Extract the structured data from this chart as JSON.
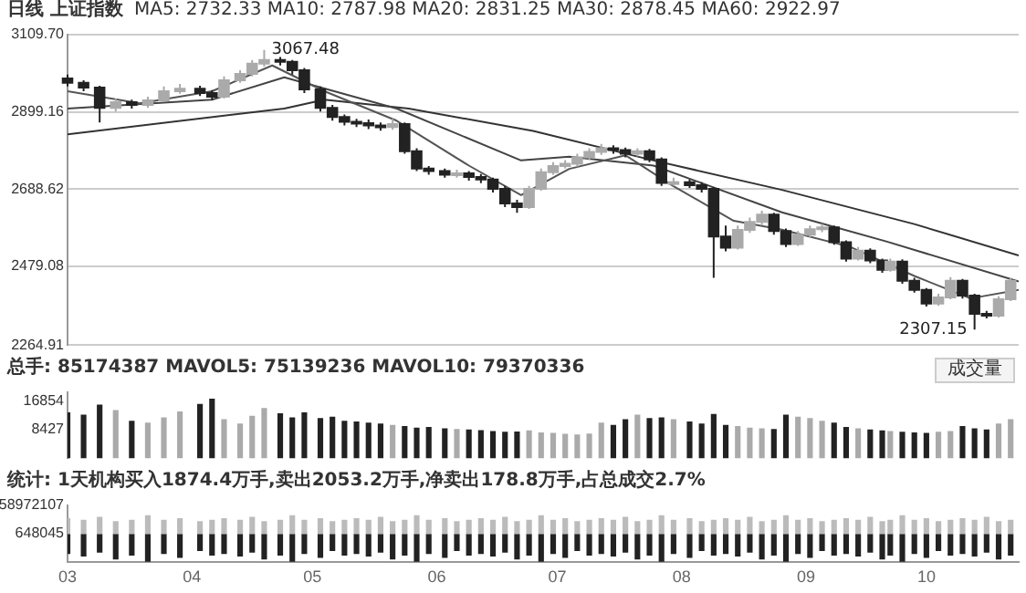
{
  "chart_data": [
    {
      "type": "candlestick",
      "title": "日线 上证指数",
      "subtitle": "MA5: 2732.33 MA10: 2787.98 MA20: 2831.25 MA30: 2878.45 MA60: 2922.97",
      "x": [
        "--03-01",
        "--03-05",
        "--03-09",
        "--03-13",
        "--03-17",
        "--03-21",
        "--03-25",
        "--03-29",
        "--04-03",
        "--04-06",
        "--04-09",
        "--04-13",
        "--04-16",
        "--04-19",
        "--04-23",
        "--04-26",
        "--04-29",
        "--05-03",
        "--05-06",
        "--05-09",
        "--05-12",
        "--05-15",
        "--05-18",
        "--05-21",
        "--05-24",
        "--05-27",
        "--05-30",
        "--06-03",
        "--06-06",
        "--06-09",
        "--06-12",
        "--06-15",
        "--06-18",
        "--06-21",
        "--06-24",
        "--06-27",
        "--06-30",
        "--07-03",
        "--07-06",
        "--07-09",
        "--07-12",
        "--07-15",
        "--07-18",
        "--07-21",
        "--07-24",
        "--07-27",
        "--07-30",
        "--08-03",
        "--08-06",
        "--08-09",
        "--08-12",
        "--08-15",
        "--08-18",
        "--08-21",
        "--08-24",
        "--08-27",
        "--08-30",
        "--09-02",
        "--09-05",
        "--09-08",
        "--09-11",
        "--09-14",
        "--09-17",
        "--09-20",
        "--09-22",
        "--09-25",
        "--09-28",
        "--10-01",
        "--10-04",
        "--10-07",
        "--10-10",
        "--10-13",
        "--10-16",
        "--10-19",
        "--10-22"
      ],
      "ohlc": [
        [
          2990,
          3000,
          2968,
          2978
        ],
        [
          2978,
          2985,
          2955,
          2965
        ],
        [
          2965,
          2970,
          2870,
          2910
        ],
        [
          2910,
          2935,
          2900,
          2925
        ],
        [
          2925,
          2932,
          2908,
          2918
        ],
        [
          2918,
          2940,
          2910,
          2930
        ],
        [
          2930,
          2968,
          2925,
          2955
        ],
        [
          2955,
          2975,
          2948,
          2962
        ],
        [
          2962,
          2970,
          2942,
          2950
        ],
        [
          2950,
          2958,
          2930,
          2940
        ],
        [
          2940,
          2995,
          2935,
          2985
        ],
        [
          2985,
          3012,
          2978,
          3002
        ],
        [
          3002,
          3040,
          2995,
          3030
        ],
        [
          3030,
          3067.48,
          3022,
          3040
        ],
        [
          3040,
          3048,
          3025,
          3035
        ],
        [
          3035,
          3040,
          3000,
          3012
        ],
        [
          3012,
          3018,
          2950,
          2960
        ],
        [
          2960,
          2968,
          2900,
          2910
        ],
        [
          2910,
          2918,
          2875,
          2885
        ],
        [
          2885,
          2892,
          2862,
          2872
        ],
        [
          2872,
          2880,
          2858,
          2868
        ],
        [
          2868,
          2878,
          2852,
          2862
        ],
        [
          2862,
          2870,
          2848,
          2858
        ],
        [
          2858,
          2880,
          2850,
          2866
        ],
        [
          2866,
          2870,
          2785,
          2792
        ],
        [
          2792,
          2800,
          2738,
          2745
        ],
        [
          2745,
          2752,
          2728,
          2738
        ],
        [
          2738,
          2745,
          2720,
          2728
        ],
        [
          2728,
          2742,
          2720,
          2732
        ],
        [
          2732,
          2738,
          2712,
          2722
        ],
        [
          2722,
          2730,
          2705,
          2715
        ],
        [
          2715,
          2720,
          2680,
          2690
        ],
        [
          2690,
          2698,
          2640,
          2650
        ],
        [
          2650,
          2660,
          2625,
          2640
        ],
        [
          2640,
          2698,
          2635,
          2690
        ],
        [
          2690,
          2745,
          2685,
          2735
        ],
        [
          2735,
          2762,
          2728,
          2752
        ],
        [
          2752,
          2768,
          2745,
          2758
        ],
        [
          2758,
          2785,
          2750,
          2775
        ],
        [
          2775,
          2800,
          2768,
          2790
        ],
        [
          2790,
          2812,
          2782,
          2800
        ],
        [
          2800,
          2808,
          2785,
          2795
        ],
        [
          2795,
          2802,
          2775,
          2785
        ],
        [
          2785,
          2800,
          2778,
          2792
        ],
        [
          2792,
          2798,
          2762,
          2770
        ],
        [
          2770,
          2775,
          2698,
          2706
        ],
        [
          2706,
          2720,
          2698,
          2708
        ],
        [
          2708,
          2715,
          2692,
          2700
        ],
        [
          2700,
          2708,
          2680,
          2690
        ],
        [
          2690,
          2695,
          2448,
          2560
        ],
        [
          2560,
          2590,
          2520,
          2530
        ],
        [
          2530,
          2590,
          2525,
          2578
        ],
        [
          2578,
          2612,
          2570,
          2600
        ],
        [
          2600,
          2630,
          2590,
          2620
        ],
        [
          2620,
          2625,
          2565,
          2575
        ],
        [
          2575,
          2582,
          2532,
          2540
        ],
        [
          2540,
          2575,
          2535,
          2565
        ],
        [
          2565,
          2590,
          2558,
          2580
        ],
        [
          2580,
          2595,
          2572,
          2585
        ],
        [
          2585,
          2590,
          2538,
          2545
        ],
        [
          2545,
          2550,
          2492,
          2500
        ],
        [
          2500,
          2532,
          2495,
          2522
        ],
        [
          2522,
          2528,
          2488,
          2495
        ],
        [
          2495,
          2500,
          2462,
          2470
        ],
        [
          2470,
          2500,
          2465,
          2492
        ],
        [
          2492,
          2498,
          2432,
          2440
        ],
        [
          2440,
          2448,
          2408,
          2415
        ],
        [
          2415,
          2420,
          2370,
          2378
        ],
        [
          2378,
          2405,
          2372,
          2395
        ],
        [
          2395,
          2450,
          2390,
          2440
        ],
        [
          2440,
          2445,
          2392,
          2400
        ],
        [
          2400,
          2405,
          2307.15,
          2350
        ],
        [
          2350,
          2358,
          2338,
          2345
        ],
        [
          2345,
          2398,
          2340,
          2390
        ],
        [
          2390,
          2448,
          2385,
          2440
        ]
      ],
      "colors": [
        "#222222",
        "#222222",
        "#222222",
        "#aaaaaa",
        "#222222",
        "#aaaaaa",
        "#aaaaaa",
        "#aaaaaa",
        "#222222",
        "#222222",
        "#aaaaaa",
        "#aaaaaa",
        "#aaaaaa",
        "#aaaaaa",
        "#222222",
        "#222222",
        "#222222",
        "#222222",
        "#222222",
        "#222222",
        "#222222",
        "#222222",
        "#222222",
        "#aaaaaa",
        "#222222",
        "#222222",
        "#222222",
        "#222222",
        "#aaaaaa",
        "#222222",
        "#222222",
        "#222222",
        "#222222",
        "#222222",
        "#aaaaaa",
        "#aaaaaa",
        "#aaaaaa",
        "#aaaaaa",
        "#aaaaaa",
        "#aaaaaa",
        "#aaaaaa",
        "#222222",
        "#222222",
        "#aaaaaa",
        "#222222",
        "#222222",
        "#aaaaaa",
        "#222222",
        "#222222",
        "#222222",
        "#222222",
        "#aaaaaa",
        "#aaaaaa",
        "#aaaaaa",
        "#222222",
        "#222222",
        "#aaaaaa",
        "#aaaaaa",
        "#aaaaaa",
        "#222222",
        "#222222",
        "#aaaaaa",
        "#222222",
        "#222222",
        "#aaaaaa",
        "#222222",
        "#222222",
        "#222222",
        "#aaaaaa",
        "#aaaaaa",
        "#222222",
        "#222222",
        "#222222",
        "#aaaaaa",
        "#aaaaaa"
      ],
      "series": [
        {
          "type": "line",
          "color": "#555555",
          "x": [
            "--03-01",
            "--03-19",
            "--04-06",
            "--04-21",
            "--05-04",
            "--05-22",
            "--06-09",
            "--06-22",
            "--07-04",
            "--07-18",
            "--07-30",
            "--08-14",
            "--08-26",
            "--09-12",
            "--09-28",
            "--10-12",
            "--10-24"
          ],
          "values": [
            2955,
            2922,
            2955,
            3025,
            2955,
            2875,
            2753,
            2673,
            2744,
            2781,
            2697,
            2603,
            2579,
            2532,
            2453,
            2392,
            2415
          ]
        },
        {
          "type": "line",
          "color": "#444444",
          "x": [
            "--03-01",
            "--04-06",
            "--04-24",
            "--05-22",
            "--06-22",
            "--07-04",
            "--07-25",
            "--08-26",
            "--09-21",
            "--10-24"
          ],
          "values": [
            2908,
            2932,
            2993,
            2908,
            2767,
            2777,
            2753,
            2626,
            2547,
            2438
          ]
        },
        {
          "type": "line",
          "color": "#333333",
          "x": [
            "--03-01",
            "--04-24",
            "--05-04",
            "--05-25",
            "--06-25",
            "--07-25",
            "--08-26",
            "--09-28",
            "--10-24"
          ],
          "values": [
            2838,
            2908,
            2932,
            2908,
            2847,
            2767,
            2687,
            2594,
            2509
          ]
        }
      ],
      "annotations": [
        {
          "text": "3067.48",
          "x": "--04-19",
          "y": 3067.48
        },
        {
          "text": "2307.15",
          "x": "--10-13",
          "y": 2307.15
        }
      ],
      "xlim": [
        "--03-01",
        "--10-24"
      ],
      "xticks": [
        {
          "value": "--03-01",
          "label": "03"
        },
        {
          "value": "--04-01",
          "label": "04"
        },
        {
          "value": "--05-01",
          "label": "05"
        },
        {
          "value": "--06-01",
          "label": "06"
        },
        {
          "value": "--07-01",
          "label": "07"
        },
        {
          "value": "--08-01",
          "label": "08"
        },
        {
          "value": "--09-01",
          "label": "09"
        },
        {
          "value": "--10-01",
          "label": "10"
        }
      ],
      "ylim": [
        2264.91,
        3109.7
      ],
      "yticks": [
        {
          "value": 2264.91,
          "label": "2264.91"
        },
        {
          "value": 2479.08,
          "label": "2479.08"
        },
        {
          "value": 2688.62,
          "label": "2688.62"
        },
        {
          "value": 2899.16,
          "label": "2899.16"
        },
        {
          "value": 3109.7,
          "label": "3109.70"
        }
      ],
      "grid": "y",
      "tick_labels": "y"
    },
    {
      "type": "bar",
      "title": "总手: 85174387 MAVOL5: 75139236 MAVOL10: 79370336",
      "annotations": [
        "成交量"
      ],
      "x": [
        "--03-01",
        "--03-05",
        "--03-09",
        "--03-13",
        "--03-17",
        "--03-21",
        "--03-25",
        "--03-29",
        "--04-03",
        "--04-06",
        "--04-09",
        "--04-13",
        "--04-16",
        "--04-19",
        "--04-23",
        "--04-26",
        "--04-29",
        "--05-03",
        "--05-06",
        "--05-09",
        "--05-12",
        "--05-15",
        "--05-18",
        "--05-21",
        "--05-24",
        "--05-27",
        "--05-30",
        "--06-03",
        "--06-06",
        "--06-09",
        "--06-12",
        "--06-15",
        "--06-18",
        "--06-21",
        "--06-24",
        "--06-27",
        "--06-30",
        "--07-03",
        "--07-06",
        "--07-09",
        "--07-12",
        "--07-15",
        "--07-18",
        "--07-21",
        "--07-24",
        "--07-27",
        "--07-30",
        "--08-03",
        "--08-06",
        "--08-09",
        "--08-12",
        "--08-15",
        "--08-18",
        "--08-21",
        "--08-24",
        "--08-27",
        "--08-30",
        "--09-02",
        "--09-05",
        "--09-08",
        "--09-11",
        "--09-14",
        "--09-17",
        "--09-20",
        "--09-22",
        "--09-25",
        "--09-28",
        "--10-01",
        "--10-04",
        "--10-07",
        "--10-10",
        "--10-13",
        "--10-16",
        "--10-19",
        "--10-22"
      ],
      "values": [
        13500,
        12800,
        15800,
        14200,
        11000,
        10500,
        12000,
        13800,
        16000,
        17500,
        11500,
        10200,
        12500,
        14800,
        13200,
        12000,
        13500,
        11800,
        12200,
        11000,
        10800,
        10500,
        10200,
        9800,
        9500,
        9000,
        9200,
        8800,
        8600,
        8500,
        8300,
        8000,
        7800,
        7900,
        8200,
        7600,
        7500,
        7200,
        7000,
        7300,
        10500,
        9800,
        11500,
        12800,
        11800,
        12000,
        11500,
        10800,
        10200,
        13000,
        9800,
        9500,
        9000,
        8800,
        8600,
        12800,
        12200,
        11800,
        11000,
        10500,
        9200,
        8800,
        8500,
        8200,
        8000,
        7800,
        7600,
        7500,
        7800,
        8000,
        9500,
        8800,
        8500,
        10200,
        11500
      ],
      "colors": [
        "#222222",
        "#222222",
        "#222222",
        "#aaaaaa",
        "#222222",
        "#aaaaaa",
        "#aaaaaa",
        "#aaaaaa",
        "#222222",
        "#222222",
        "#aaaaaa",
        "#aaaaaa",
        "#aaaaaa",
        "#aaaaaa",
        "#222222",
        "#222222",
        "#222222",
        "#222222",
        "#222222",
        "#222222",
        "#222222",
        "#222222",
        "#222222",
        "#aaaaaa",
        "#222222",
        "#222222",
        "#222222",
        "#222222",
        "#aaaaaa",
        "#222222",
        "#222222",
        "#222222",
        "#222222",
        "#222222",
        "#aaaaaa",
        "#aaaaaa",
        "#aaaaaa",
        "#aaaaaa",
        "#aaaaaa",
        "#aaaaaa",
        "#aaaaaa",
        "#222222",
        "#222222",
        "#aaaaaa",
        "#222222",
        "#222222",
        "#aaaaaa",
        "#222222",
        "#222222",
        "#222222",
        "#222222",
        "#aaaaaa",
        "#aaaaaa",
        "#aaaaaa",
        "#222222",
        "#222222",
        "#aaaaaa",
        "#aaaaaa",
        "#aaaaaa",
        "#222222",
        "#222222",
        "#aaaaaa",
        "#222222",
        "#222222",
        "#aaaaaa",
        "#222222",
        "#222222",
        "#222222",
        "#aaaaaa",
        "#aaaaaa",
        "#222222",
        "#222222",
        "#222222",
        "#aaaaaa",
        "#aaaaaa"
      ],
      "xlim": [
        "--03-01",
        "--10-24"
      ],
      "xticks": [
        {
          "value": "--03-01",
          "label": "03"
        },
        {
          "value": "--04-01",
          "label": "04"
        },
        {
          "value": "--05-01",
          "label": "05"
        },
        {
          "value": "--06-01",
          "label": "06"
        },
        {
          "value": "--07-01",
          "label": "07"
        },
        {
          "value": "--08-01",
          "label": "08"
        },
        {
          "value": "--09-01",
          "label": "09"
        },
        {
          "value": "--10-01",
          "label": "10"
        }
      ],
      "ylim": [
        0,
        19500
      ],
      "yticks": [
        8427,
        16854
      ],
      "tick_labels": "y"
    },
    {
      "type": "bar",
      "title": "统计: 1天机构买入1874.4万手,卖出2053.2万手,净卖出178.8万手,占总成交2.7%",
      "stacked": true,
      "x": [
        "--03-01",
        "--03-05",
        "--03-09",
        "--03-13",
        "--03-17",
        "--03-21",
        "--03-25",
        "--03-29",
        "--04-03",
        "--04-06",
        "--04-09",
        "--04-13",
        "--04-16",
        "--04-19",
        "--04-23",
        "--04-26",
        "--04-29",
        "--05-03",
        "--05-06",
        "--05-09",
        "--05-12",
        "--05-15",
        "--05-18",
        "--05-21",
        "--05-24",
        "--05-27",
        "--05-30",
        "--06-03",
        "--06-06",
        "--06-09",
        "--06-12",
        "--06-15",
        "--06-18",
        "--06-21",
        "--06-24",
        "--06-27",
        "--06-30",
        "--07-03",
        "--07-06",
        "--07-09",
        "--07-12",
        "--07-15",
        "--07-18",
        "--07-21",
        "--07-24",
        "--07-27",
        "--07-30",
        "--08-03",
        "--08-06",
        "--08-09",
        "--08-12",
        "--08-15",
        "--08-18",
        "--08-21",
        "--08-24",
        "--08-27",
        "--08-30",
        "--09-02",
        "--09-05",
        "--09-08",
        "--09-11",
        "--09-14",
        "--09-17",
        "--09-20",
        "--09-22",
        "--09-25",
        "--09-28",
        "--10-01",
        "--10-04",
        "--10-07",
        "--10-10",
        "--10-13",
        "--10-16",
        "--10-19",
        "--10-22"
      ],
      "series": [
        {
          "color": "#bbbbbb",
          "values": [
            32000000,
            29000000,
            35000000,
            26000000,
            29000000,
            38000000,
            29000000,
            32000000,
            26000000,
            29000000,
            32000000,
            29000000,
            35000000,
            26000000,
            29000000,
            38000000,
            29000000,
            32000000,
            26000000,
            29000000,
            32000000,
            29000000,
            35000000,
            26000000,
            29000000,
            38000000,
            29000000,
            32000000,
            26000000,
            29000000,
            32000000,
            29000000,
            35000000,
            26000000,
            29000000,
            38000000,
            29000000,
            32000000,
            26000000,
            29000000,
            32000000,
            29000000,
            35000000,
            26000000,
            29000000,
            38000000,
            29000000,
            32000000,
            26000000,
            29000000,
            32000000,
            29000000,
            35000000,
            26000000,
            29000000,
            38000000,
            29000000,
            32000000,
            26000000,
            29000000,
            32000000,
            29000000,
            35000000,
            26000000,
            29000000,
            38000000,
            29000000,
            32000000,
            26000000,
            29000000,
            32000000,
            29000000,
            35000000,
            26000000,
            29000000
          ]
        },
        {
          "color": "#222222",
          "values": [
            -41000000,
            -46000000,
            -38000000,
            -52000000,
            -44000000,
            -57000000,
            -41000000,
            -49000000,
            -35000000,
            -44000000,
            -41000000,
            -46000000,
            -38000000,
            -52000000,
            -44000000,
            -57000000,
            -41000000,
            -49000000,
            -35000000,
            -44000000,
            -41000000,
            -46000000,
            -38000000,
            -52000000,
            -44000000,
            -57000000,
            -41000000,
            -49000000,
            -35000000,
            -44000000,
            -41000000,
            -46000000,
            -38000000,
            -52000000,
            -44000000,
            -57000000,
            -41000000,
            -49000000,
            -35000000,
            -44000000,
            -41000000,
            -46000000,
            -38000000,
            -52000000,
            -44000000,
            -57000000,
            -41000000,
            -49000000,
            -35000000,
            -44000000,
            -41000000,
            -46000000,
            -38000000,
            -52000000,
            -44000000,
            -57000000,
            -41000000,
            -49000000,
            -35000000,
            -44000000,
            -41000000,
            -46000000,
            -38000000,
            -52000000,
            -44000000,
            -57000000,
            -41000000,
            -49000000,
            -35000000,
            -44000000,
            -41000000,
            -46000000,
            -38000000,
            -52000000,
            -44000000
          ]
        }
      ],
      "ylim": [
        -58000000,
        58972107
      ],
      "yticks": [
        648045,
        58972107
      ],
      "xlim": [
        "--03-01",
        "--10-24"
      ],
      "xticks": [
        {
          "value": "--03-01",
          "label": "03"
        },
        {
          "value": "--04-01",
          "label": "04"
        },
        {
          "value": "--05-01",
          "label": "05"
        },
        {
          "value": "--06-01",
          "label": "06"
        },
        {
          "value": "--07-01",
          "label": "07"
        },
        {
          "value": "--08-01",
          "label": "08"
        },
        {
          "value": "--09-01",
          "label": "09"
        },
        {
          "value": "--10-01",
          "label": "10"
        }
      ],
      "grid": false
    }
  ]
}
